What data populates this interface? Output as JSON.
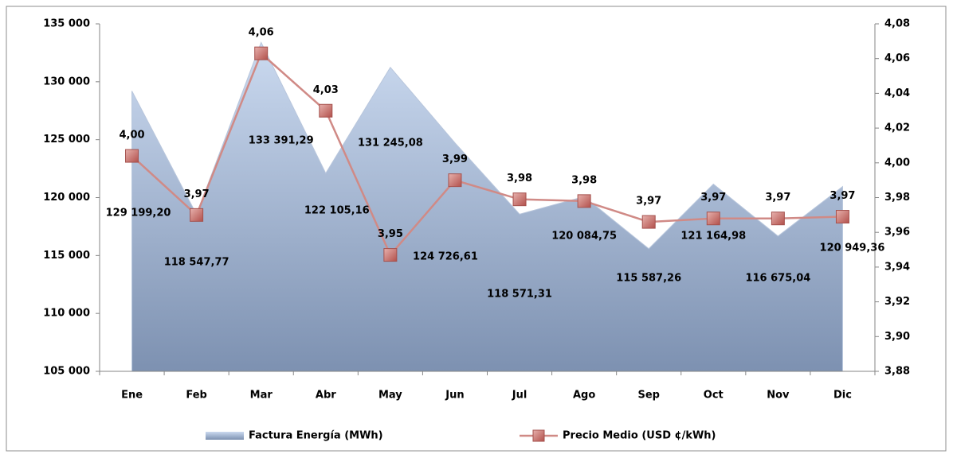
{
  "chart_data": {
    "type": "area",
    "categories": [
      "Ene",
      "Feb",
      "Mar",
      "Abr",
      "May",
      "Jun",
      "Jul",
      "Ago",
      "Sep",
      "Oct",
      "Nov",
      "Dic"
    ],
    "series": [
      {
        "name": "Factura Energía (MWh)",
        "type": "area",
        "color": "#9fb4d6",
        "values": [
          129199.2,
          118547.77,
          133391.29,
          122105.16,
          131245.08,
          124726.61,
          118571.31,
          120084.75,
          115587.26,
          121164.98,
          116675.04,
          120949.36
        ],
        "value_labels": [
          "129 199,20",
          "118 547,77",
          "133 391,29",
          "122 105,16",
          "131 245,08",
          "124 726,61",
          "118 571,31",
          "120 084,75",
          "115 587,26",
          "121 164,98",
          "116 675,04",
          "120 949,36"
        ]
      },
      {
        "name": "Precio Medio (USD ¢/kWh)",
        "type": "line",
        "axis": "y2",
        "color": "#d08a86",
        "values": [
          4.004,
          3.97,
          4.063,
          4.03,
          3.947,
          3.99,
          3.979,
          3.978,
          3.966,
          3.968,
          3.968,
          3.969
        ],
        "value_labels": [
          "4,00",
          "3,97",
          "4,06",
          "4,03",
          "3,95",
          "3,99",
          "3,98",
          "3,98",
          "3,97",
          "3,97",
          "3,97",
          "3,97"
        ]
      }
    ],
    "ylim": [
      105000,
      135000
    ],
    "yticks": [
      {
        "value": 105000,
        "label": "105 000"
      },
      {
        "value": 110000,
        "label": "110 000"
      },
      {
        "value": 115000,
        "label": "115 000"
      },
      {
        "value": 120000,
        "label": "120 000"
      },
      {
        "value": 125000,
        "label": "125 000"
      },
      {
        "value": 130000,
        "label": "130 000"
      },
      {
        "value": 135000,
        "label": "135 000"
      }
    ],
    "y2lim": [
      3.88,
      4.08
    ],
    "y2ticks": [
      {
        "value": 3.88,
        "label": "3,88"
      },
      {
        "value": 3.9,
        "label": "3,90"
      },
      {
        "value": 3.92,
        "label": "3,92"
      },
      {
        "value": 3.94,
        "label": "3,94"
      },
      {
        "value": 3.96,
        "label": "3,96"
      },
      {
        "value": 3.98,
        "label": "3,98"
      },
      {
        "value": 4.0,
        "label": "4,00"
      },
      {
        "value": 4.02,
        "label": "4,02"
      },
      {
        "value": 4.04,
        "label": "4,04"
      },
      {
        "value": 4.06,
        "label": "4,06"
      },
      {
        "value": 4.08,
        "label": "4,08"
      }
    ],
    "legend": "bottom"
  }
}
